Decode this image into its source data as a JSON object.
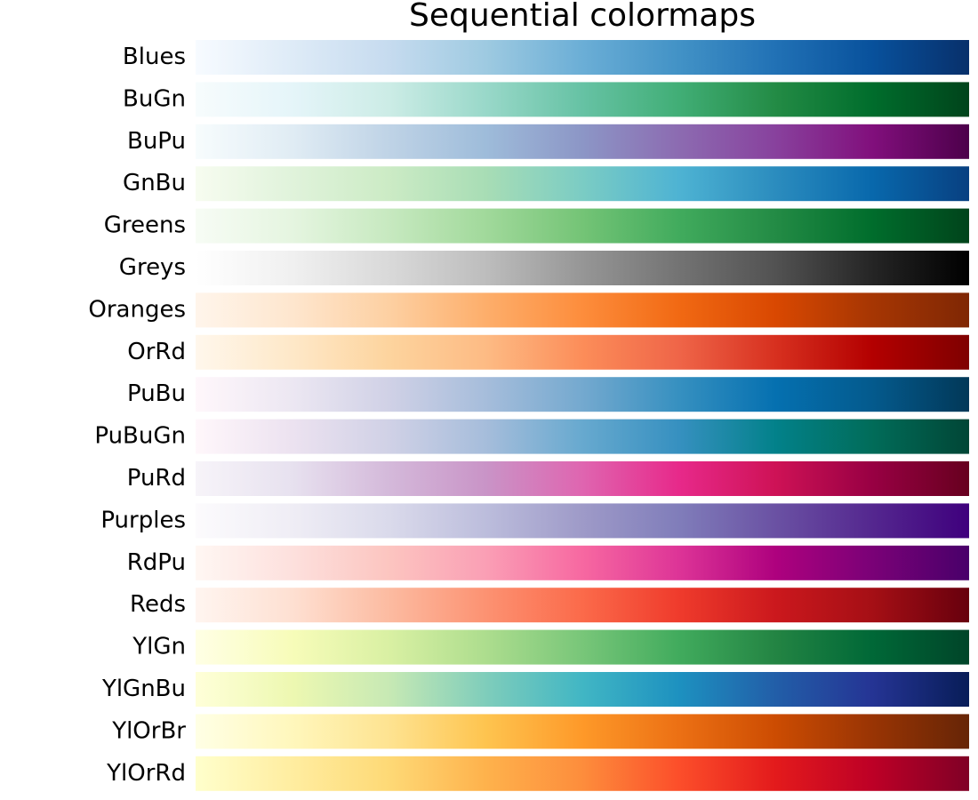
{
  "title": "Sequential colormaps",
  "colormaps": [
    {
      "name": "Blues",
      "colors": [
        "#f7fbff",
        "#deebf7",
        "#c6dbef",
        "#9ecae1",
        "#6baed6",
        "#4292c6",
        "#2171b5",
        "#08519c",
        "#08306b"
      ]
    },
    {
      "name": "BuGn",
      "colors": [
        "#f7fcfd",
        "#e5f5f9",
        "#ccece6",
        "#99d8c9",
        "#66c2a4",
        "#41ae76",
        "#238b45",
        "#006d2c",
        "#00441b"
      ]
    },
    {
      "name": "BuPu",
      "colors": [
        "#f7fcfd",
        "#e0ecf4",
        "#bfd3e6",
        "#9ebcda",
        "#8c96c6",
        "#8c6bb1",
        "#88419d",
        "#810f7c",
        "#4d004b"
      ]
    },
    {
      "name": "GnBu",
      "colors": [
        "#f7fcf0",
        "#e0f3db",
        "#ccebc5",
        "#a8ddb5",
        "#7bccc4",
        "#4eb3d3",
        "#2b8cbe",
        "#0868ac",
        "#084081"
      ]
    },
    {
      "name": "Greens",
      "colors": [
        "#f7fcf5",
        "#e5f5e0",
        "#c7e9c0",
        "#a1d99b",
        "#74c476",
        "#41ab5d",
        "#238b45",
        "#006d2c",
        "#00441b"
      ]
    },
    {
      "name": "Greys",
      "colors": [
        "#ffffff",
        "#f0f0f0",
        "#d9d9d9",
        "#bdbdbd",
        "#969696",
        "#737373",
        "#525252",
        "#252525",
        "#000000"
      ]
    },
    {
      "name": "Oranges",
      "colors": [
        "#fff5eb",
        "#fee6ce",
        "#fdd0a2",
        "#fdae6b",
        "#fd8d3c",
        "#f16913",
        "#d94801",
        "#a63603",
        "#7f2704"
      ]
    },
    {
      "name": "OrRd",
      "colors": [
        "#fff7ec",
        "#fee8c8",
        "#fdd49e",
        "#fdbb84",
        "#fc8d59",
        "#ef6548",
        "#d7301f",
        "#b30000",
        "#7f0000"
      ]
    },
    {
      "name": "PuBu",
      "colors": [
        "#fff7fb",
        "#ece7f2",
        "#d0d1e6",
        "#a6bddb",
        "#74a9cf",
        "#3690c0",
        "#0570b0",
        "#045a8d",
        "#023858"
      ]
    },
    {
      "name": "PuBuGn",
      "colors": [
        "#fff7fb",
        "#ece2f0",
        "#d0d1e6",
        "#a6bddb",
        "#67a9cf",
        "#3690c0",
        "#02818a",
        "#016c59",
        "#014636"
      ]
    },
    {
      "name": "PuRd",
      "colors": [
        "#f7f4f9",
        "#e7e1ef",
        "#d4b9da",
        "#c994c7",
        "#df65b0",
        "#e7298a",
        "#ce1256",
        "#980043",
        "#67001f"
      ]
    },
    {
      "name": "Purples",
      "colors": [
        "#fcfbfd",
        "#efedf5",
        "#dadaeb",
        "#bcbddc",
        "#9e9ac8",
        "#807dba",
        "#6a51a3",
        "#54278f",
        "#3f007d"
      ]
    },
    {
      "name": "RdPu",
      "colors": [
        "#fff7f3",
        "#fde0dd",
        "#fcc5c0",
        "#fa9fb5",
        "#f768a1",
        "#dd3497",
        "#ae017e",
        "#7a0177",
        "#49006a"
      ]
    },
    {
      "name": "Reds",
      "colors": [
        "#fff5f0",
        "#fee0d2",
        "#fcbba1",
        "#fc9272",
        "#fb6a4a",
        "#ef3b2c",
        "#cb181d",
        "#a50f15",
        "#67000d"
      ]
    },
    {
      "name": "YlGn",
      "colors": [
        "#ffffe5",
        "#f7fcb9",
        "#d9f0a3",
        "#addd8e",
        "#78c679",
        "#41ab5d",
        "#238443",
        "#006837",
        "#004529"
      ]
    },
    {
      "name": "YlGnBu",
      "colors": [
        "#ffffd9",
        "#edf8b1",
        "#c7e9b4",
        "#7fcdbb",
        "#41b6c4",
        "#1d91c0",
        "#225ea8",
        "#253494",
        "#081d58"
      ]
    },
    {
      "name": "YlOrBr",
      "colors": [
        "#ffffe5",
        "#fff7bc",
        "#fee391",
        "#fec44f",
        "#fe9929",
        "#ec7014",
        "#cc4c02",
        "#993404",
        "#662506"
      ]
    },
    {
      "name": "YlOrRd",
      "colors": [
        "#ffffcc",
        "#ffeda0",
        "#fed976",
        "#feb24c",
        "#fd8d3c",
        "#fc4e2a",
        "#e31a1c",
        "#bd0026",
        "#800026"
      ]
    }
  ]
}
